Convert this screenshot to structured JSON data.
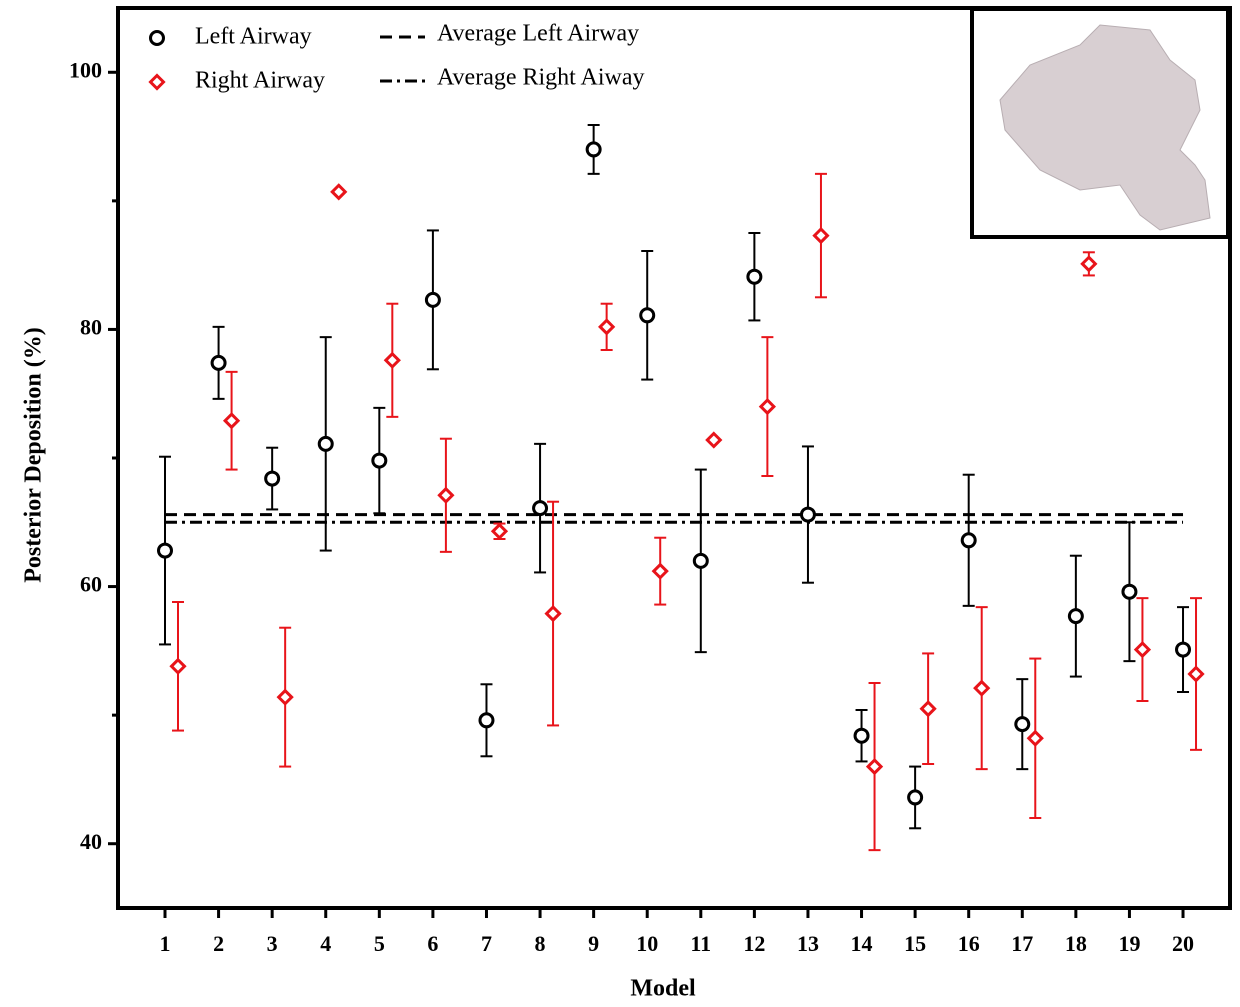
{
  "chart_data": {
    "type": "scatter-errorbar",
    "x_label": "Model",
    "y_label": "Posterior Deposition (%)",
    "categories": [
      "1",
      "2",
      "3",
      "4",
      "5",
      "6",
      "7",
      "8",
      "9",
      "10",
      "11",
      "12",
      "13",
      "14",
      "15",
      "16",
      "17",
      "18",
      "19",
      "20"
    ],
    "ylim": [
      35,
      105
    ],
    "yticks": [
      40,
      60,
      80,
      100
    ],
    "yminorticks": [
      50,
      70,
      90
    ],
    "series": [
      {
        "name": "Left Airway",
        "color": "#000000",
        "marker": "circle",
        "offset": 0,
        "values": [
          62.8,
          77.4,
          68.4,
          71.1,
          69.8,
          82.3,
          49.6,
          66.1,
          94.0,
          81.1,
          62.0,
          84.1,
          65.6,
          48.4,
          43.6,
          63.6,
          49.3,
          57.7,
          59.6,
          55.1
        ],
        "errors": [
          7.3,
          2.8,
          2.4,
          8.3,
          4.1,
          5.4,
          2.8,
          5.0,
          1.9,
          5.0,
          7.1,
          3.4,
          5.3,
          2.0,
          2.4,
          5.1,
          3.5,
          4.7,
          5.4,
          3.3
        ]
      },
      {
        "name": "Right Airway",
        "color": "#e8141a",
        "marker": "diamond",
        "offset": 1,
        "values": [
          53.8,
          72.9,
          51.4,
          90.7,
          77.6,
          67.1,
          64.3,
          57.9,
          80.2,
          61.2,
          71.4,
          74.0,
          87.3,
          46.0,
          50.5,
          52.1,
          48.2,
          85.1,
          55.1,
          53.2
        ],
        "errors": [
          5.0,
          3.8,
          5.4,
          0,
          4.4,
          4.4,
          0.6,
          8.7,
          1.8,
          2.6,
          0,
          5.4,
          4.8,
          6.5,
          4.3,
          6.3,
          6.2,
          0.9,
          4.0,
          5.9
        ]
      }
    ],
    "reference_lines": [
      {
        "name": "Average Left Airway",
        "value": 65.6,
        "style": "dashed",
        "color": "#000000"
      },
      {
        "name": "Average Right Aiway",
        "value": 65.0,
        "style": "dashdot",
        "color": "#000000"
      }
    ]
  }
}
